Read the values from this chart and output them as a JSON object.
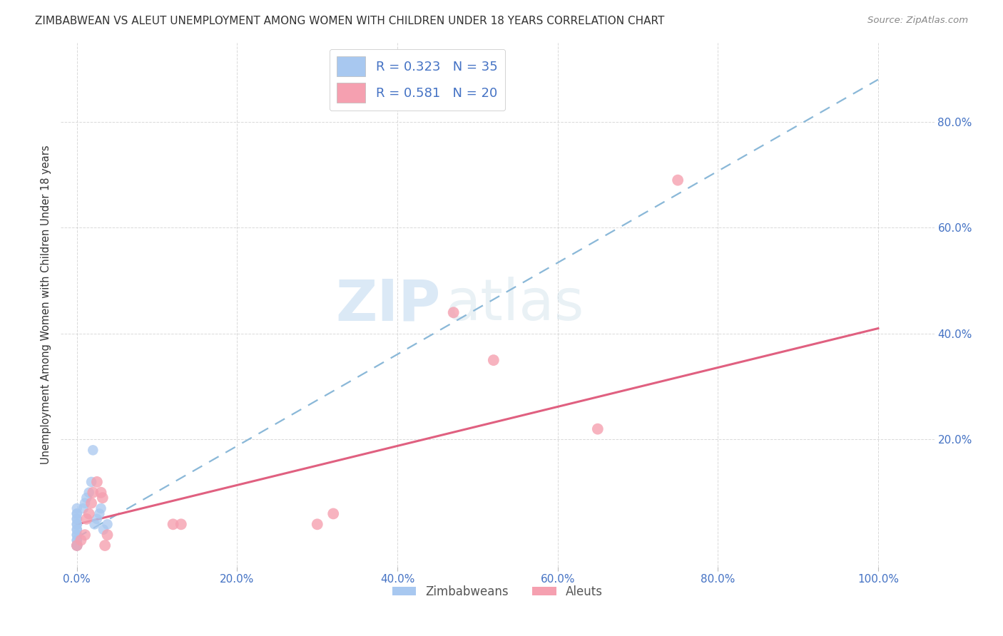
{
  "title": "ZIMBABWEAN VS ALEUT UNEMPLOYMENT AMONG WOMEN WITH CHILDREN UNDER 18 YEARS CORRELATION CHART",
  "source": "Source: ZipAtlas.com",
  "ylabel": "Unemployment Among Women with Children Under 18 years",
  "watermark_zip": "ZIP",
  "watermark_atlas": "atlas",
  "background_color": "#ffffff",
  "plot_bg_color": "#ffffff",
  "grid_color": "#d0d0d0",
  "zimbabwean_color": "#a8c8f0",
  "aleut_color": "#f5a0b0",
  "trend_zim_color": "#8ab8d8",
  "trend_aleut_color": "#e06080",
  "x_tick_labels": [
    "0.0%",
    "20.0%",
    "40.0%",
    "60.0%",
    "80.0%",
    "100.0%"
  ],
  "x_tick_vals": [
    0.0,
    0.2,
    0.4,
    0.6,
    0.8,
    1.0
  ],
  "y_tick_labels": [
    "20.0%",
    "40.0%",
    "60.0%",
    "80.0%"
  ],
  "y_tick_vals": [
    0.2,
    0.4,
    0.6,
    0.8
  ],
  "xlim": [
    -0.02,
    1.07
  ],
  "ylim": [
    -0.04,
    0.95
  ],
  "zim_x": [
    0.0,
    0.0,
    0.0,
    0.0,
    0.0,
    0.0,
    0.0,
    0.0,
    0.0,
    0.0,
    0.0,
    0.0,
    0.0,
    0.0,
    0.0,
    0.0,
    0.0,
    0.0,
    0.0,
    0.0,
    0.0,
    0.0,
    0.0,
    0.008,
    0.01,
    0.012,
    0.015,
    0.018,
    0.02,
    0.022,
    0.025,
    0.028,
    0.03,
    0.033,
    0.038
  ],
  "zim_y": [
    0.0,
    0.0,
    0.0,
    0.0,
    0.0,
    0.0,
    0.0,
    0.0,
    0.0,
    0.0,
    0.01,
    0.01,
    0.02,
    0.02,
    0.03,
    0.03,
    0.04,
    0.04,
    0.05,
    0.05,
    0.06,
    0.06,
    0.07,
    0.07,
    0.08,
    0.09,
    0.1,
    0.12,
    0.18,
    0.04,
    0.05,
    0.06,
    0.07,
    0.03,
    0.04
  ],
  "aleut_x": [
    0.0,
    0.005,
    0.01,
    0.012,
    0.015,
    0.018,
    0.02,
    0.025,
    0.03,
    0.032,
    0.035,
    0.038,
    0.12,
    0.13,
    0.3,
    0.32,
    0.47,
    0.52,
    0.65,
    0.75
  ],
  "aleut_y": [
    0.0,
    0.01,
    0.02,
    0.05,
    0.06,
    0.08,
    0.1,
    0.12,
    0.1,
    0.09,
    0.0,
    0.02,
    0.04,
    0.04,
    0.04,
    0.06,
    0.44,
    0.35,
    0.22,
    0.69
  ],
  "trend_zim_x0": 0.0,
  "trend_zim_x1": 1.0,
  "trend_zim_y0": 0.015,
  "trend_zim_y1": 0.88,
  "trend_aleut_x0": 0.0,
  "trend_aleut_x1": 1.0,
  "trend_aleut_y0": 0.04,
  "trend_aleut_y1": 0.41,
  "dot_size_zim": 110,
  "dot_size_aleut": 130,
  "legend1_label": "R = 0.323   N = 35",
  "legend2_label": "R = 0.581   N = 20",
  "legend_bottom1": "Zimbabweans",
  "legend_bottom2": "Aleuts"
}
